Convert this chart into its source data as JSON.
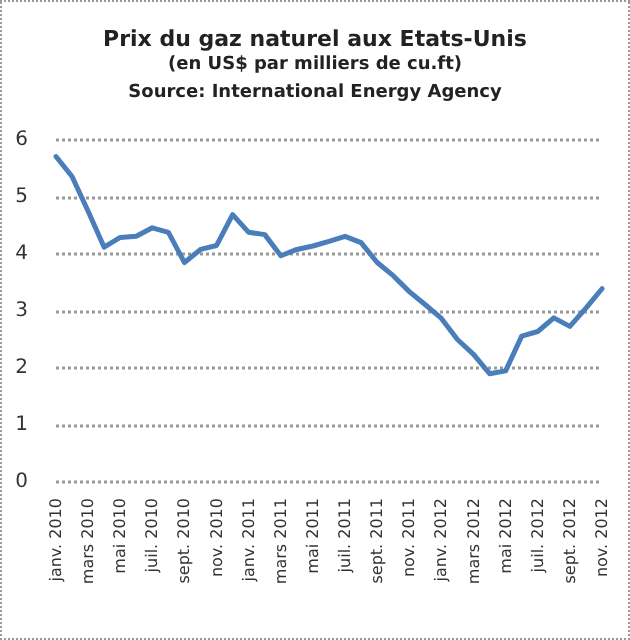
{
  "chart_data": {
    "type": "line",
    "title": "Prix du gaz naturel aux Etats-Unis",
    "subtitle": "(en US$ par milliers de cu.ft)",
    "annotations": [
      "Source: International Energy Agency"
    ],
    "categories": [
      "janv. 2010",
      null,
      "mars 2010",
      null,
      "mai 2010",
      null,
      "juil. 2010",
      null,
      "sept. 2010",
      null,
      "nov. 2010",
      null,
      "janv. 2011",
      null,
      "mars 2011",
      null,
      "mai 2011",
      null,
      "juil. 2011",
      null,
      "sept. 2011",
      null,
      "nov. 2011",
      null,
      "janv. 2012",
      null,
      "mars 2012",
      null,
      "mai 2012",
      null,
      "juil. 2012",
      null,
      "sept. 2012",
      null,
      "nov. 2012"
    ],
    "series": [
      {
        "color": "#4a7ebb",
        "values": [
          5.71,
          5.36,
          4.75,
          4.12,
          4.29,
          4.31,
          4.46,
          4.38,
          3.85,
          4.08,
          4.15,
          4.69,
          4.38,
          4.34,
          3.97,
          4.08,
          4.14,
          4.22,
          4.31,
          4.2,
          3.85,
          3.62,
          3.34,
          3.11,
          2.87,
          2.5,
          2.24,
          1.9,
          1.95,
          2.56,
          2.64,
          2.88,
          2.73,
          3.05,
          3.39
        ]
      }
    ],
    "ylim": [
      0,
      6
    ],
    "yticks": [
      0,
      1,
      2,
      3,
      4,
      5,
      6
    ],
    "grid": "y",
    "marker": "none",
    "line_style": "solid"
  }
}
